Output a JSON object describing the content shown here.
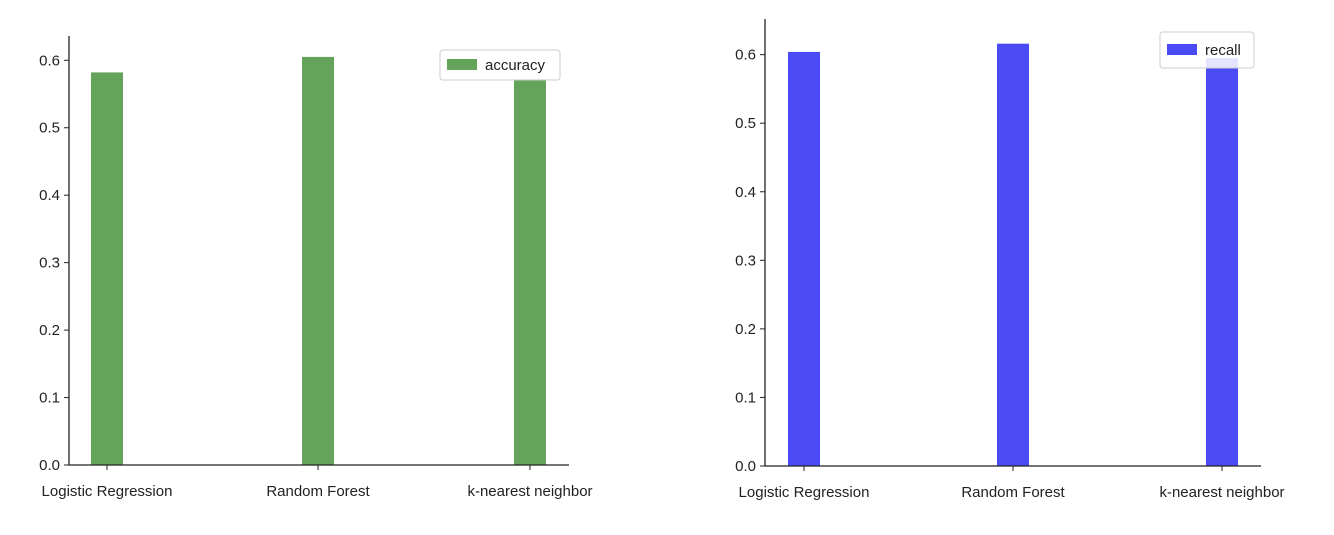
{
  "chart_data": [
    {
      "type": "bar",
      "categories": [
        "Logistic Regression",
        "Random Forest",
        "k-nearest neighbor"
      ],
      "series": [
        {
          "name": "accuracy",
          "values": [
            0.582,
            0.605,
            0.572
          ],
          "color": "#63a35a"
        }
      ],
      "title": "",
      "xlabel": "",
      "ylabel": "",
      "ylim": [
        0,
        0.636
      ],
      "yticks": [
        "0.0",
        "0.1",
        "0.2",
        "0.3",
        "0.4",
        "0.5",
        "0.6"
      ],
      "legend_position": "top-right",
      "grid": false,
      "spines": "left-bottom"
    },
    {
      "type": "bar",
      "categories": [
        "Logistic Regression",
        "Random Forest",
        "k-nearest neighbor"
      ],
      "series": [
        {
          "name": "recall",
          "values": [
            0.604,
            0.616,
            0.595
          ],
          "color": "#4b4bf5"
        }
      ],
      "title": "",
      "xlabel": "",
      "ylabel": "",
      "ylim": [
        0,
        0.652
      ],
      "yticks": [
        "0.0",
        "0.1",
        "0.2",
        "0.3",
        "0.4",
        "0.5",
        "0.6"
      ],
      "legend_position": "top-right",
      "grid": false,
      "spines": "left-bottom"
    }
  ]
}
